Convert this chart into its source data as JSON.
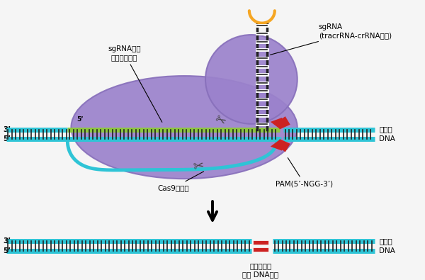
{
  "bg_color": "#f5f5f5",
  "purple_color": "#9b82cc",
  "purple_edge": "#8870bb",
  "dna_cyan": "#2ec4d6",
  "dna_tick": "#222222",
  "green_strand": "#8dc63f",
  "orange_loop": "#f5a623",
  "red_pam": "#cc2222",
  "white": "#ffffff",
  "black": "#111111",
  "label_sgrna_recog_1": "sgRNA识别",
  "label_sgrna_recog_2": "基因组靶序列",
  "label_sgrna_1": "sgRNA",
  "label_sgrna_2": "(tracrRNA-crRNA融合)",
  "label_cas9": "Cas9核酸酶",
  "label_pam": "PAM(5’-NGG-3’)",
  "label_genome": "基因组",
  "label_dna": "DNA",
  "label_cut_1": "位点特异的",
  "label_cut_2": "双链 DNA断裂",
  "label_3p": "3’",
  "label_5p": "5’",
  "label_5p_inner": "5’"
}
